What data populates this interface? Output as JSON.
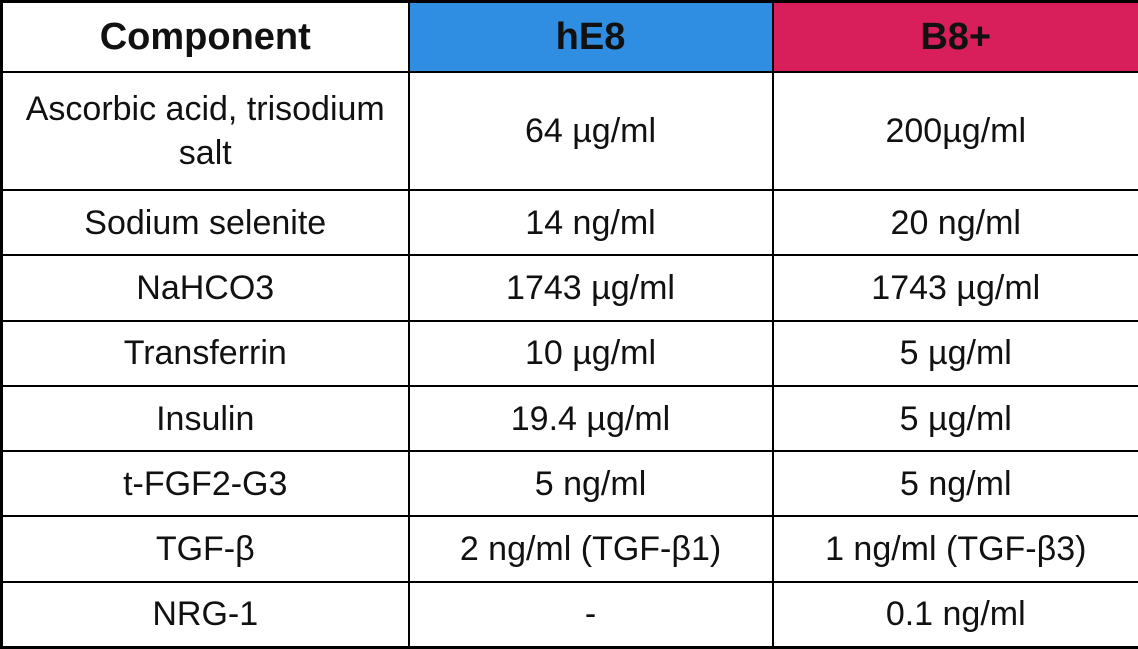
{
  "table": {
    "header": [
      "Component",
      "hE8",
      "B8+"
    ],
    "rows": [
      [
        "Ascorbic acid, trisodium salt",
        "64 µg/ml",
        "200µg/ml"
      ],
      [
        "Sodium selenite",
        "14 ng/ml",
        "20 ng/ml"
      ],
      [
        "NaHCO3",
        "1743 µg/ml",
        "1743 µg/ml"
      ],
      [
        "Transferrin",
        "10 µg/ml",
        "5 µg/ml"
      ],
      [
        "Insulin",
        "19.4 µg/ml",
        "5 µg/ml"
      ],
      [
        "t-FGF2-G3",
        "5 ng/ml",
        "5 ng/ml"
      ],
      [
        "TGF-β",
        "2 ng/ml (TGF-β1)",
        "1 ng/ml (TGF-β3)"
      ],
      [
        "NRG-1",
        "-",
        "0.1 ng/ml"
      ]
    ]
  }
}
